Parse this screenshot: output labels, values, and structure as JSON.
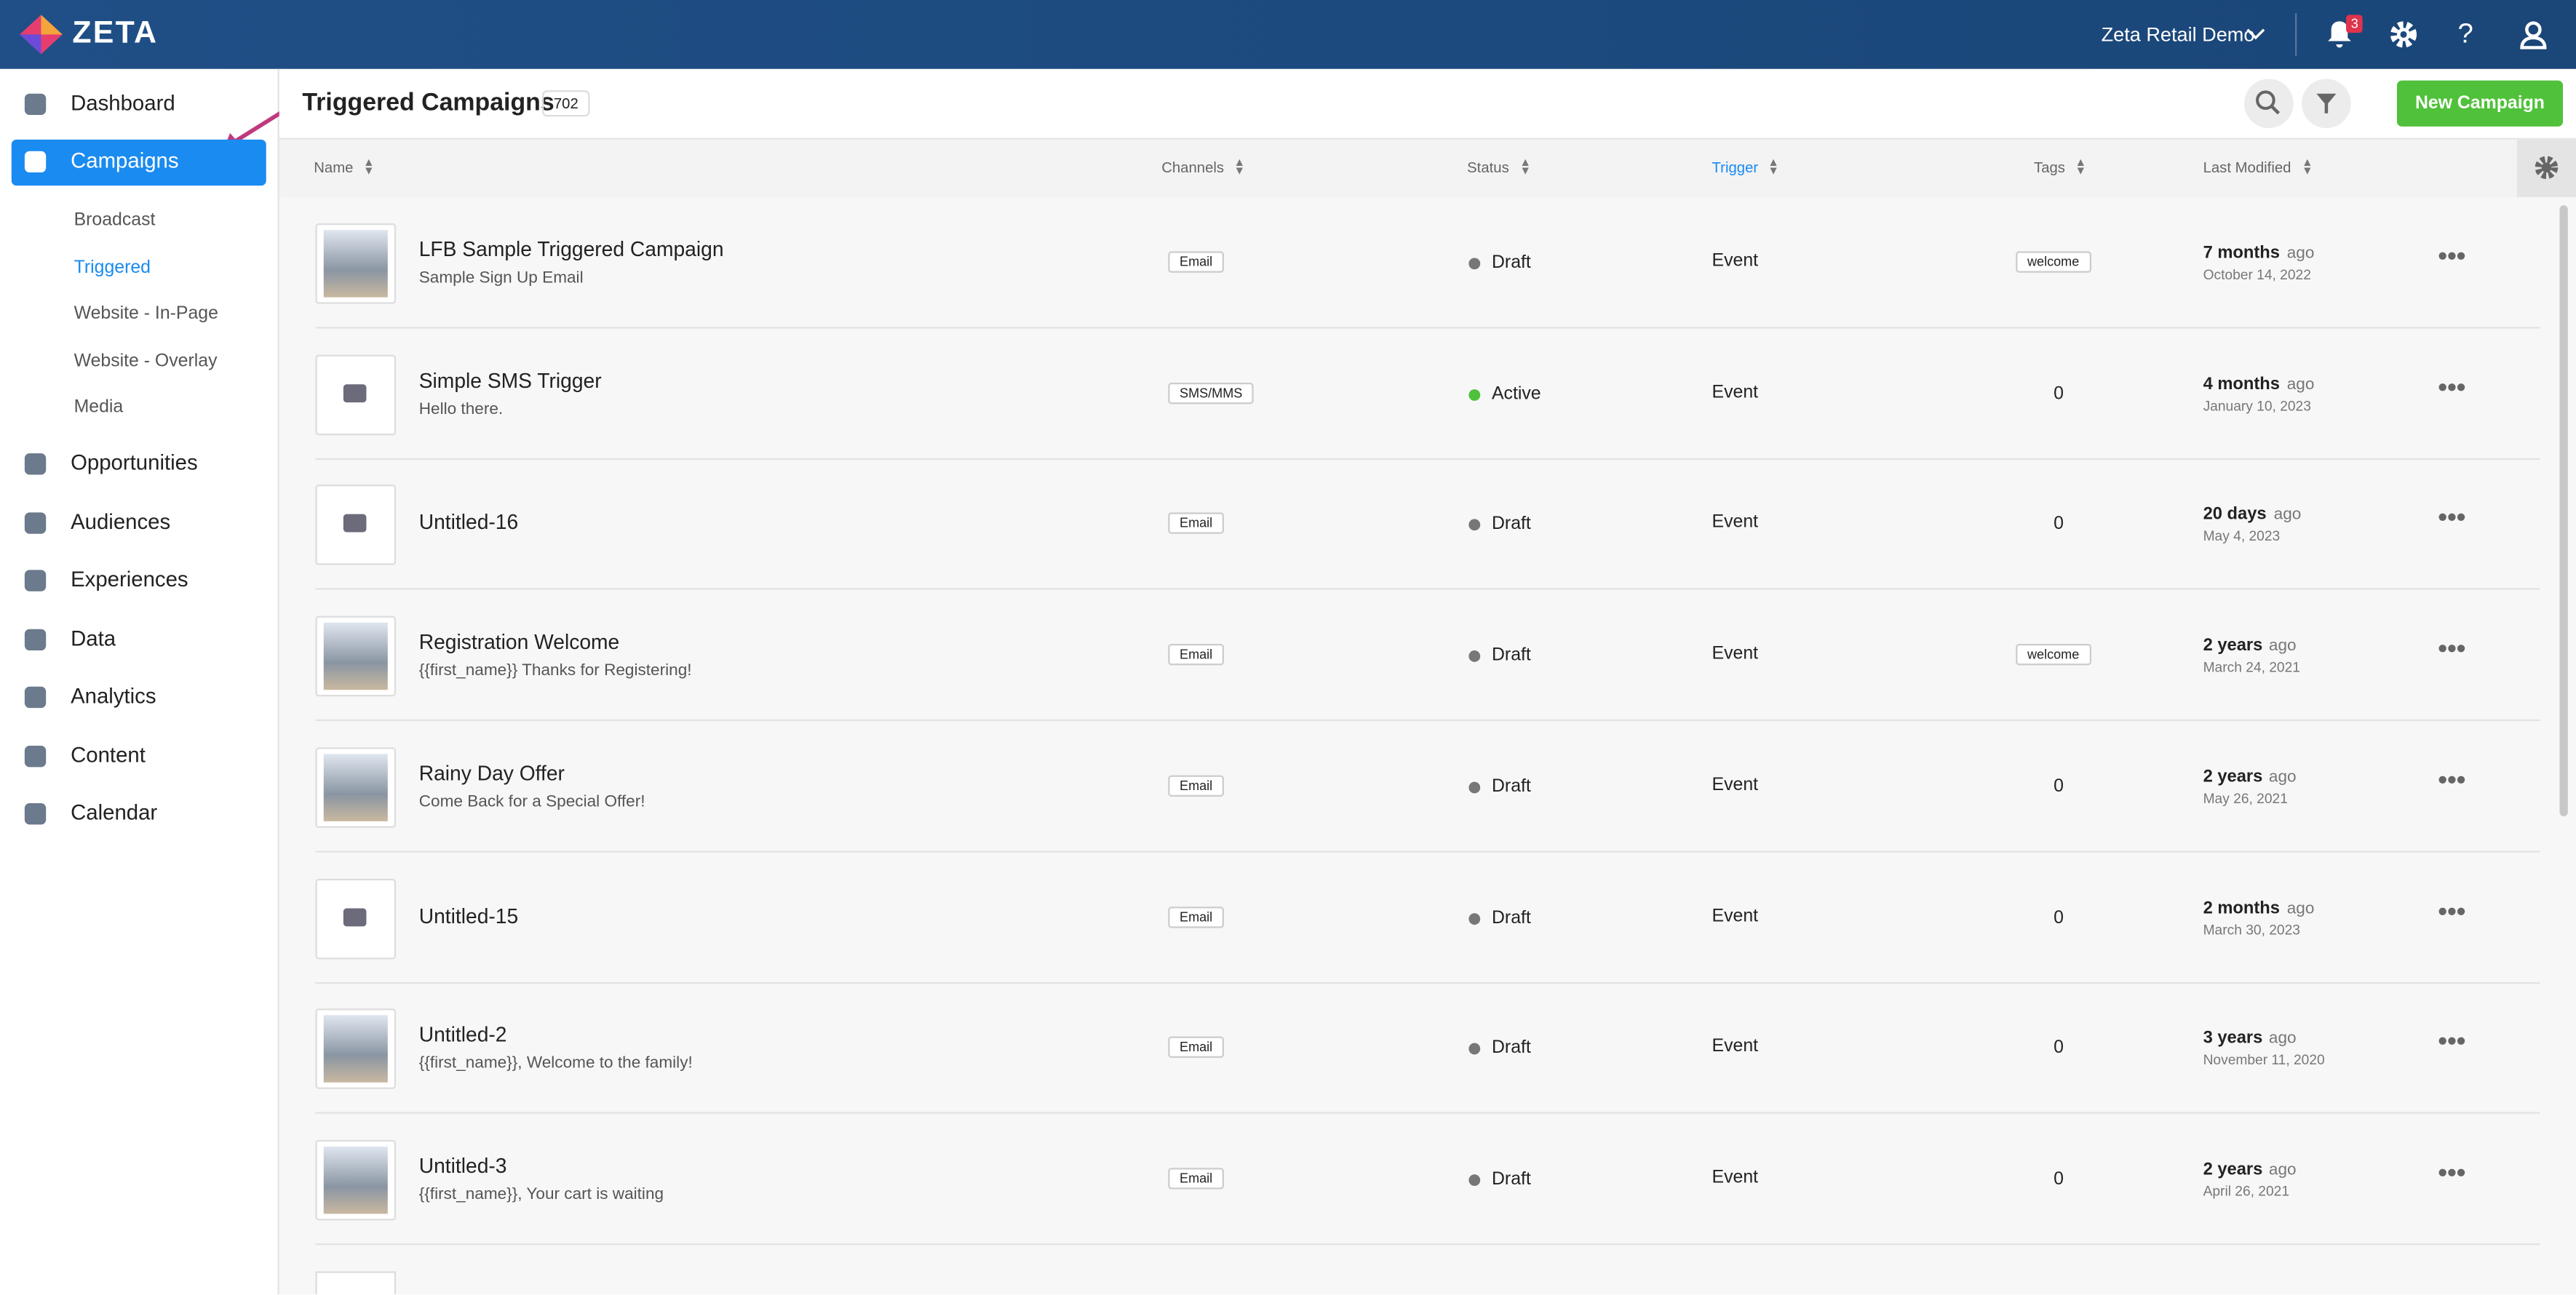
{
  "header": {
    "brand": "ZETA",
    "account": "Zeta Retail Demo",
    "notification_count": "3"
  },
  "sidebar": {
    "items": [
      "Dashboard",
      "Campaigns",
      "Opportunities",
      "Audiences",
      "Experiences",
      "Data",
      "Analytics",
      "Content",
      "Calendar"
    ],
    "sub_items": [
      "Broadcast",
      "Triggered",
      "Website - In-Page",
      "Website - Overlay",
      "Media"
    ]
  },
  "page": {
    "title": "Triggered Campaigns",
    "count": "702",
    "new_button": "New Campaign"
  },
  "table": {
    "columns": [
      "Name",
      "Channels",
      "Status",
      "Trigger",
      "Tags",
      "Last Modified"
    ],
    "ago_label": "ago",
    "rows": [
      {
        "name": "LFB Sample Triggered Campaign",
        "subject": "Sample Sign Up Email",
        "channel": "Email",
        "status": "Draft",
        "trigger": "Event",
        "tags": "welcome",
        "modified": "7 months",
        "date": "October 14, 2022"
      },
      {
        "name": "Simple SMS Trigger",
        "subject": "Hello there.",
        "channel": "SMS/MMS",
        "status": "Active",
        "trigger": "Event",
        "tags": "0",
        "modified": "4 months",
        "date": "January 10, 2023"
      },
      {
        "name": "Untitled-16",
        "subject": "",
        "channel": "Email",
        "status": "Draft",
        "trigger": "Event",
        "tags": "0",
        "modified": "20 days",
        "date": "May 4, 2023"
      },
      {
        "name": "Registration Welcome",
        "subject": "{{first_name}} Thanks for Registering!",
        "channel": "Email",
        "status": "Draft",
        "trigger": "Event",
        "tags": "welcome",
        "modified": "2 years",
        "date": "March 24, 2021"
      },
      {
        "name": "Rainy Day Offer",
        "subject": "Come Back for a Special Offer!",
        "channel": "Email",
        "status": "Draft",
        "trigger": "Event",
        "tags": "0",
        "modified": "2 years",
        "date": "May 26, 2021"
      },
      {
        "name": "Untitled-15",
        "subject": "",
        "channel": "Email",
        "status": "Draft",
        "trigger": "Event",
        "tags": "0",
        "modified": "2 months",
        "date": "March 30, 2023"
      },
      {
        "name": "Untitled-2",
        "subject": "{{first_name}}, Welcome to the family!",
        "channel": "Email",
        "status": "Draft",
        "trigger": "Event",
        "tags": "0",
        "modified": "3 years",
        "date": "November 11, 2020"
      },
      {
        "name": "Untitled-3",
        "subject": "{{first_name}}, Your cart is waiting",
        "channel": "Email",
        "status": "Draft",
        "trigger": "Event",
        "tags": "0",
        "modified": "2 years",
        "date": "April 26, 2021"
      }
    ]
  }
}
